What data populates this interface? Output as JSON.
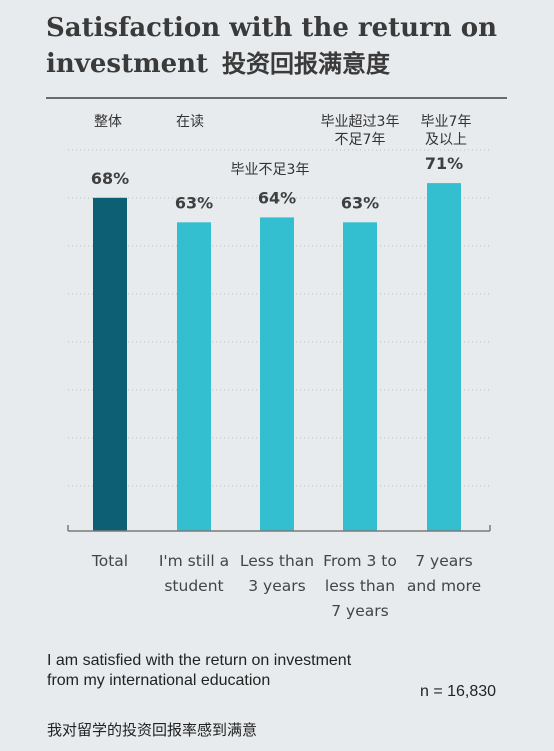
{
  "title": {
    "en_line1": "Satisfaction with the return on",
    "en_line2": "investment",
    "cn": "投资回报满意度"
  },
  "chart_data": {
    "type": "bar",
    "title": "Satisfaction with the return on investment 投资回报满意度",
    "categories": [
      {
        "en": [
          "Total"
        ],
        "cn": [
          "整体"
        ],
        "value": 68,
        "label": "68%",
        "color": "#0d5f73"
      },
      {
        "en": [
          "I'm still a",
          "student"
        ],
        "cn": [
          "在读"
        ],
        "value": 63,
        "label": "63%",
        "color": "#33bfd0"
      },
      {
        "en": [
          "Less than",
          "3 years"
        ],
        "cn": [
          "毕业不足3年"
        ],
        "value": 64,
        "label": "64%",
        "color": "#33bfd0"
      },
      {
        "en": [
          "From 3 to",
          "less than",
          "7 years"
        ],
        "cn": [
          "毕业超过3年",
          "不足7年"
        ],
        "value": 63,
        "label": "63%",
        "color": "#33bfd0"
      },
      {
        "en": [
          "7 years",
          "and more"
        ],
        "cn": [
          "毕业7年",
          "及以上"
        ],
        "value": 71,
        "label": "71%",
        "color": "#33bfd0"
      }
    ],
    "ylim": [
      0,
      72
    ],
    "grid": true,
    "xlabel": "",
    "ylabel": ""
  },
  "footnote": {
    "en": "I am satisfied with the return on investment from my international education",
    "cn": "我对留学的投资回报率感到满意",
    "n": "n = 16,830"
  }
}
